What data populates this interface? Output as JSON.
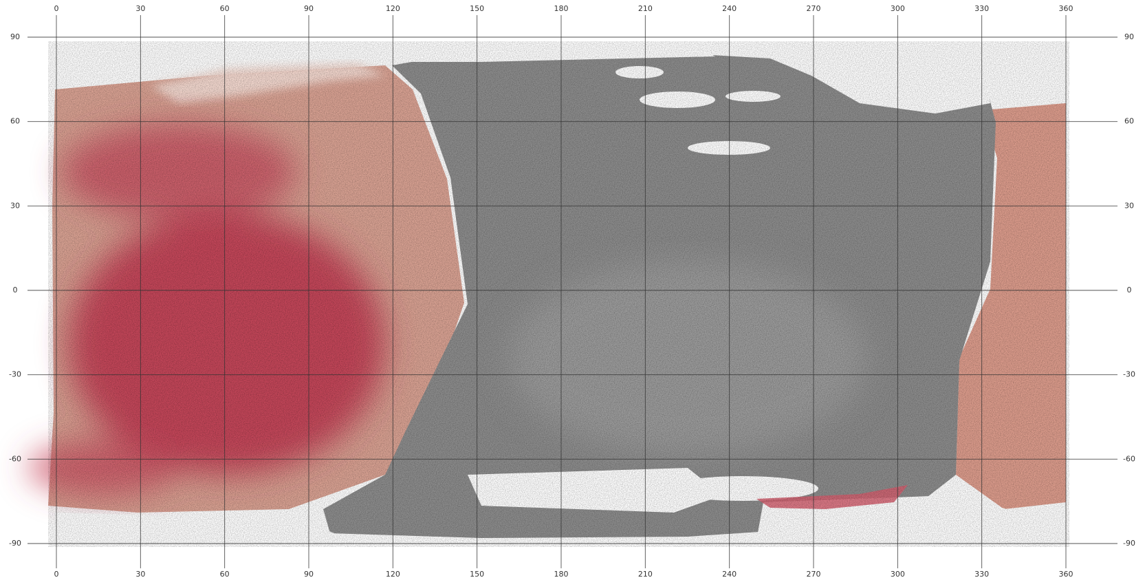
{
  "map": {
    "xticks": [
      0,
      30,
      60,
      90,
      120,
      150,
      180,
      210,
      240,
      270,
      300,
      330,
      360
    ],
    "yticks": [
      90,
      60,
      30,
      0,
      -30,
      -60,
      -90
    ],
    "xlim": [
      0,
      360
    ],
    "ylim": [
      -90,
      90
    ]
  }
}
